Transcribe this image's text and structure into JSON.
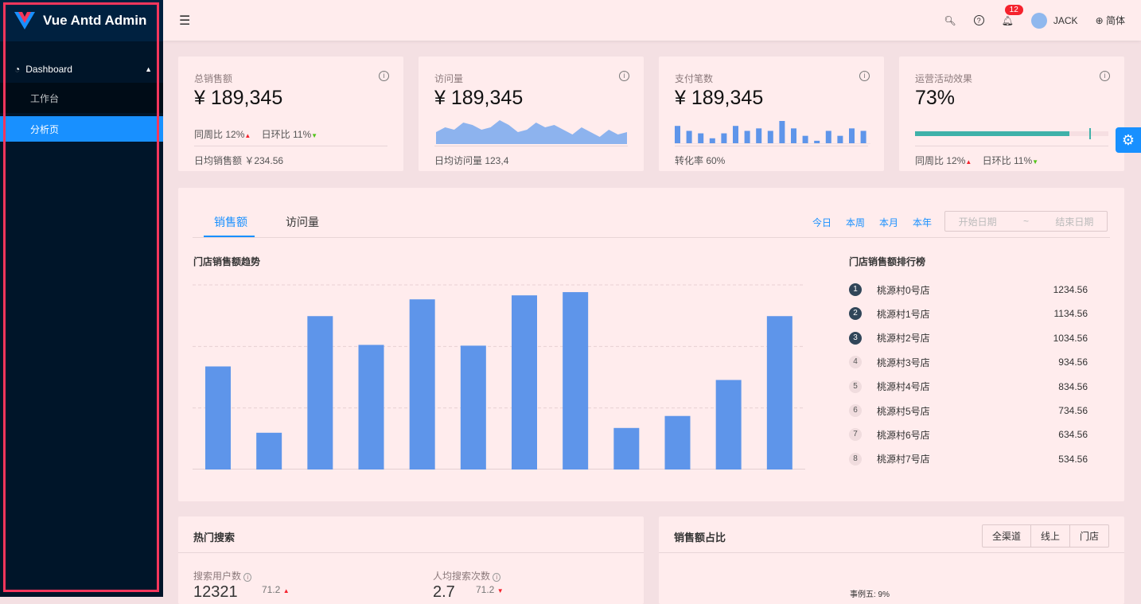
{
  "app": {
    "title": "Vue Antd Admin"
  },
  "sidebar": {
    "group": "Dashboard",
    "items": [
      {
        "label": "工作台"
      },
      {
        "label": "分析页",
        "active": true
      }
    ]
  },
  "header": {
    "notifications": "12",
    "user": "JACK",
    "lang": "简体"
  },
  "cards": [
    {
      "title": "总销售额",
      "value": "¥ 189,345",
      "wow_label": "同周比",
      "wow": "12%",
      "dod_label": "日环比",
      "dod": "11%",
      "footer": "日均销售额 ￥234.56"
    },
    {
      "title": "访问量",
      "value": "¥ 189,345",
      "footer": "日均访问量 123,4",
      "area": [
        5,
        7,
        6,
        9,
        8,
        6,
        7,
        10,
        8,
        5,
        6,
        9,
        7,
        8,
        6,
        4,
        7,
        5,
        3,
        6,
        4,
        5
      ]
    },
    {
      "title": "支付笔数",
      "value": "¥ 189,345",
      "footer": "转化率 60%",
      "bars": [
        7,
        5,
        4,
        2,
        4,
        7,
        5,
        6,
        5,
        9,
        6,
        3,
        1,
        5,
        3,
        6,
        5
      ]
    },
    {
      "title": "运营活动效果",
      "value": "73%",
      "progress": 0.8,
      "target": 0.9,
      "wow_label": "同周比",
      "wow": "12%",
      "dod_label": "日环比",
      "dod": "11%"
    }
  ],
  "sales": {
    "tabs": [
      "销售额",
      "访问量"
    ],
    "active_tab": "销售额",
    "periods": [
      "今日",
      "本周",
      "本月",
      "本年"
    ],
    "start_placeholder": "开始日期",
    "range_sep": "~",
    "end_placeholder": "结束日期"
  },
  "chart_data": {
    "type": "bar",
    "title": "门店销售额趋势",
    "values": [
      670,
      239,
      997,
      810,
      1106,
      805,
      1132,
      1153,
      270,
      348,
      582,
      997
    ],
    "ylim": [
      0,
      1200
    ],
    "grid": true,
    "color": "#5e95ea"
  },
  "ranking": {
    "title": "门店销售额排行榜",
    "items": [
      {
        "rank": "1",
        "name": "桃源村0号店",
        "value": "1234.56"
      },
      {
        "rank": "2",
        "name": "桃源村1号店",
        "value": "1134.56"
      },
      {
        "rank": "3",
        "name": "桃源村2号店",
        "value": "1034.56"
      },
      {
        "rank": "4",
        "name": "桃源村3号店",
        "value": "934.56"
      },
      {
        "rank": "5",
        "name": "桃源村4号店",
        "value": "834.56"
      },
      {
        "rank": "6",
        "name": "桃源村5号店",
        "value": "734.56"
      },
      {
        "rank": "7",
        "name": "桃源村6号店",
        "value": "634.56"
      },
      {
        "rank": "8",
        "name": "桃源村7号店",
        "value": "534.56"
      }
    ]
  },
  "hot_search": {
    "title": "热门搜索",
    "users_label": "搜索用户数",
    "users": "12321",
    "users_change": "71.2",
    "avg_label": "人均搜索次数",
    "avg": "2.7",
    "avg_change": "71.2"
  },
  "share": {
    "title": "销售额占比",
    "options": [
      "全渠道",
      "线上",
      "门店"
    ],
    "label": "事例五: 9%"
  }
}
